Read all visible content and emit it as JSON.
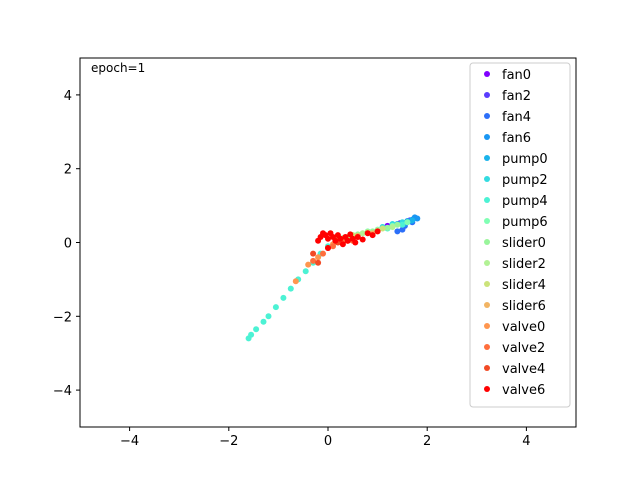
{
  "chart_data": {
    "type": "scatter",
    "title": "",
    "xlabel": "",
    "ylabel": "",
    "xlim": [
      -5,
      5
    ],
    "ylim": [
      -5,
      5
    ],
    "grid": false,
    "legend_position": "top-right",
    "annotation": "epoch=1",
    "x_ticks": [
      -4,
      -2,
      0,
      2,
      4
    ],
    "y_ticks": [
      -4,
      -2,
      0,
      2,
      4
    ],
    "series": [
      {
        "name": "fan0",
        "color": "#8000ff",
        "points": [
          [
            1.2,
            0.45
          ],
          [
            1.45,
            0.52
          ],
          [
            1.6,
            0.58
          ]
        ]
      },
      {
        "name": "fan2",
        "color": "#5a3cfe",
        "points": [
          [
            1.3,
            0.46
          ],
          [
            1.5,
            0.54
          ],
          [
            1.65,
            0.6
          ]
        ]
      },
      {
        "name": "fan4",
        "color": "#2c6ff9",
        "points": [
          [
            1.4,
            0.3
          ],
          [
            1.55,
            0.45
          ],
          [
            1.7,
            0.55
          ],
          [
            1.5,
            0.35
          ]
        ]
      },
      {
        "name": "fan6",
        "color": "#1996f3",
        "points": [
          [
            1.6,
            0.55
          ],
          [
            1.7,
            0.62
          ],
          [
            1.75,
            0.68
          ],
          [
            1.8,
            0.65
          ],
          [
            1.68,
            0.58
          ],
          [
            1.55,
            0.5
          ]
        ]
      },
      {
        "name": "pump0",
        "color": "#1ab3eb",
        "points": [
          [
            1.4,
            0.5
          ],
          [
            1.6,
            0.58
          ],
          [
            1.7,
            0.6
          ]
        ]
      },
      {
        "name": "pump2",
        "color": "#33dbe0",
        "points": [
          [
            1.1,
            0.42
          ],
          [
            1.3,
            0.5
          ],
          [
            1.5,
            0.55
          ]
        ]
      },
      {
        "name": "pump4",
        "color": "#4cf2d4",
        "points": [
          [
            -1.6,
            -2.6
          ],
          [
            -1.55,
            -2.5
          ],
          [
            -1.45,
            -2.35
          ],
          [
            -1.3,
            -2.15
          ],
          [
            -1.2,
            -2.0
          ],
          [
            -1.05,
            -1.75
          ],
          [
            -0.9,
            -1.5
          ],
          [
            -0.75,
            -1.25
          ],
          [
            -0.6,
            -1.0
          ],
          [
            -0.45,
            -0.78
          ],
          [
            -0.3,
            -0.55
          ],
          [
            -0.15,
            -0.3
          ],
          [
            0.0,
            -0.1
          ],
          [
            0.3,
            0.05
          ],
          [
            0.6,
            0.18
          ],
          [
            0.9,
            0.28
          ],
          [
            1.2,
            0.38
          ],
          [
            1.5,
            0.48
          ]
        ]
      },
      {
        "name": "pump6",
        "color": "#80ffb4",
        "points": [
          [
            0.5,
            0.2
          ],
          [
            0.8,
            0.3
          ],
          [
            1.0,
            0.35
          ],
          [
            1.3,
            0.45
          ],
          [
            1.6,
            0.55
          ]
        ]
      },
      {
        "name": "slider0",
        "color": "#99f59b",
        "points": [
          [
            0.3,
            0.12
          ],
          [
            0.6,
            0.22
          ],
          [
            0.9,
            0.3
          ],
          [
            1.2,
            0.4
          ],
          [
            1.4,
            0.48
          ]
        ]
      },
      {
        "name": "slider2",
        "color": "#b2f295",
        "points": [
          [
            0.4,
            0.15
          ],
          [
            0.7,
            0.25
          ],
          [
            1.0,
            0.33
          ],
          [
            1.3,
            0.42
          ]
        ]
      },
      {
        "name": "slider4",
        "color": "#cce37a",
        "points": [
          [
            0.2,
            0.1
          ],
          [
            0.5,
            0.2
          ],
          [
            0.8,
            0.28
          ],
          [
            1.1,
            0.38
          ]
        ]
      },
      {
        "name": "slider6",
        "color": "#f2b463",
        "points": [
          [
            0.3,
            0.1
          ],
          [
            0.6,
            0.18
          ],
          [
            0.9,
            0.25
          ],
          [
            1.0,
            0.3
          ]
        ]
      },
      {
        "name": "valve0",
        "color": "#ff964f",
        "points": [
          [
            -0.65,
            -1.05
          ],
          [
            -0.4,
            -0.6
          ],
          [
            -0.2,
            -0.4
          ],
          [
            0.1,
            -0.05
          ],
          [
            0.4,
            0.05
          ]
        ]
      },
      {
        "name": "valve2",
        "color": "#ff6e3c",
        "points": [
          [
            -0.3,
            -0.5
          ],
          [
            -0.1,
            -0.3
          ],
          [
            0.1,
            -0.1
          ],
          [
            0.3,
            0.0
          ],
          [
            0.5,
            0.05
          ]
        ]
      },
      {
        "name": "valve4",
        "color": "#f24a25",
        "points": [
          [
            -0.3,
            -0.3
          ],
          [
            -0.2,
            -0.55
          ],
          [
            0.0,
            -0.15
          ],
          [
            0.2,
            0.0
          ],
          [
            0.4,
            0.05
          ]
        ]
      },
      {
        "name": "valve6",
        "color": "#ff0000",
        "points": [
          [
            -0.2,
            0.05
          ],
          [
            -0.15,
            0.15
          ],
          [
            -0.1,
            0.25
          ],
          [
            -0.05,
            0.2
          ],
          [
            0.0,
            0.1
          ],
          [
            0.0,
            -0.15
          ],
          [
            0.05,
            0.25
          ],
          [
            0.1,
            0.15
          ],
          [
            0.15,
            0.05
          ],
          [
            0.2,
            0.2
          ],
          [
            0.25,
            0.1
          ],
          [
            0.3,
            -0.05
          ],
          [
            0.35,
            0.15
          ],
          [
            0.4,
            0.05
          ],
          [
            0.45,
            0.22
          ],
          [
            0.5,
            0.1
          ],
          [
            0.55,
            0.0
          ],
          [
            0.6,
            0.15
          ],
          [
            0.7,
            0.08
          ],
          [
            0.8,
            0.25
          ],
          [
            0.9,
            0.2
          ],
          [
            1.0,
            0.3
          ]
        ]
      }
    ]
  }
}
